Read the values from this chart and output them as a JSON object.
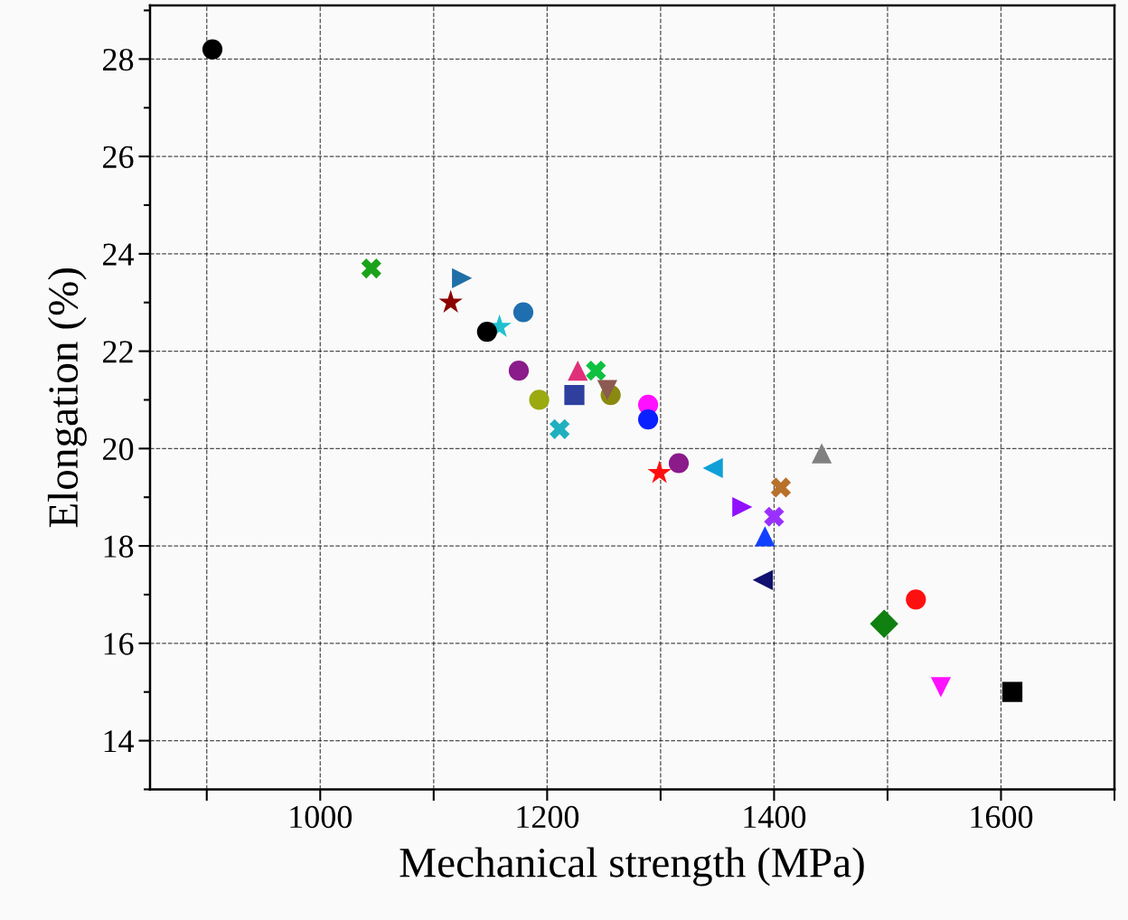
{
  "chart_data": {
    "type": "scatter",
    "xlabel": "Mechanical strength (MPa)",
    "ylabel": "Elongation (%)",
    "xlim": [
      850,
      1700
    ],
    "ylim": [
      13,
      29.1
    ],
    "xticks": [
      {
        "value": 900,
        "label": null
      },
      1000,
      {
        "value": 1100,
        "label": null
      },
      1200,
      {
        "value": 1300,
        "label": null
      },
      1400,
      {
        "value": 1500,
        "label": null
      },
      1600,
      {
        "value": 1700,
        "label": null
      }
    ],
    "yticks": [
      {
        "value": 13,
        "label": null
      },
      14,
      {
        "value": 15,
        "label": null
      },
      16,
      {
        "value": 17,
        "label": null
      },
      18,
      {
        "value": 19,
        "label": null
      },
      20,
      {
        "value": 21,
        "label": null
      },
      22,
      {
        "value": 23,
        "label": null
      },
      24,
      {
        "value": 25,
        "label": null
      },
      26,
      {
        "value": 27,
        "label": null
      },
      28,
      {
        "value": 29,
        "label": null
      }
    ],
    "grid": true,
    "series": [
      {
        "x": [
          905
        ],
        "values": [
          28.2
        ],
        "color": "#000000",
        "marker": "circle"
      },
      {
        "x": [
          1045
        ],
        "values": [
          23.7
        ],
        "color": "#1aa31a",
        "marker": "cross"
      },
      {
        "x": [
          1125
        ],
        "values": [
          23.5
        ],
        "color": "#1f6fa8",
        "marker": "triangle-right"
      },
      {
        "x": [
          1115
        ],
        "values": [
          23.0
        ],
        "color": "#8b0000",
        "marker": "star"
      },
      {
        "x": [
          1158
        ],
        "values": [
          22.5
        ],
        "color": "#20c0d0",
        "marker": "star"
      },
      {
        "x": [
          1147
        ],
        "values": [
          22.4
        ],
        "color": "#000000",
        "marker": "circle"
      },
      {
        "x": [
          1179
        ],
        "values": [
          22.8
        ],
        "color": "#1f6fb0",
        "marker": "circle"
      },
      {
        "x": [
          1175
        ],
        "values": [
          21.6
        ],
        "color": "#8b1a8b",
        "marker": "circle"
      },
      {
        "x": [
          1193
        ],
        "values": [
          21.0
        ],
        "color": "#9aaa10",
        "marker": "circle"
      },
      {
        "x": [
          1224
        ],
        "values": [
          21.1
        ],
        "color": "#2e3f9e",
        "marker": "square"
      },
      {
        "x": [
          1211
        ],
        "values": [
          20.4
        ],
        "color": "#20b0c0",
        "marker": "cross"
      },
      {
        "x": [
          1227
        ],
        "values": [
          21.6
        ],
        "color": "#e0307a",
        "marker": "triangle"
      },
      {
        "x": [
          1243
        ],
        "values": [
          21.6
        ],
        "color": "#10c040",
        "marker": "cross"
      },
      {
        "x": [
          1256
        ],
        "values": [
          21.1
        ],
        "color": "#8a8a10",
        "marker": "circle"
      },
      {
        "x": [
          1253
        ],
        "values": [
          21.2
        ],
        "color": "#8b5a50",
        "marker": "triangle-down"
      },
      {
        "x": [
          1289
        ],
        "values": [
          20.9
        ],
        "color": "#ff10ff",
        "marker": "circle"
      },
      {
        "x": [
          1289
        ],
        "values": [
          20.6
        ],
        "color": "#0a20ff",
        "marker": "circle"
      },
      {
        "x": [
          1299
        ],
        "values": [
          19.5
        ],
        "color": "#ff1010",
        "marker": "star"
      },
      {
        "x": [
          1316
        ],
        "values": [
          19.7
        ],
        "color": "#8b1a8b",
        "marker": "circle"
      },
      {
        "x": [
          1346
        ],
        "values": [
          19.6
        ],
        "color": "#10a0d8",
        "marker": "triangle-left"
      },
      {
        "x": [
          1372
        ],
        "values": [
          18.8
        ],
        "color": "#9010ff",
        "marker": "triangle-right"
      },
      {
        "x": [
          1406
        ],
        "values": [
          19.2
        ],
        "color": "#b8702a",
        "marker": "cross"
      },
      {
        "x": [
          1400
        ],
        "values": [
          18.6
        ],
        "color": "#9a30ff",
        "marker": "cross"
      },
      {
        "x": [
          1392
        ],
        "values": [
          18.2
        ],
        "color": "#1040ff",
        "marker": "triangle"
      },
      {
        "x": [
          1442
        ],
        "values": [
          19.9
        ],
        "color": "#808080",
        "marker": "triangle"
      },
      {
        "x": [
          1390
        ],
        "values": [
          17.3
        ],
        "color": "#101070",
        "marker": "triangle-left"
      },
      {
        "x": [
          1525
        ],
        "values": [
          16.9
        ],
        "color": "#ff1010",
        "marker": "circle"
      },
      {
        "x": [
          1497
        ],
        "values": [
          16.4
        ],
        "color": "#108010",
        "marker": "diamond"
      },
      {
        "x": [
          1547
        ],
        "values": [
          15.1
        ],
        "color": "#ff10ff",
        "marker": "triangle-down"
      },
      {
        "x": [
          1610
        ],
        "values": [
          15.0
        ],
        "color": "#000000",
        "marker": "square"
      }
    ]
  }
}
